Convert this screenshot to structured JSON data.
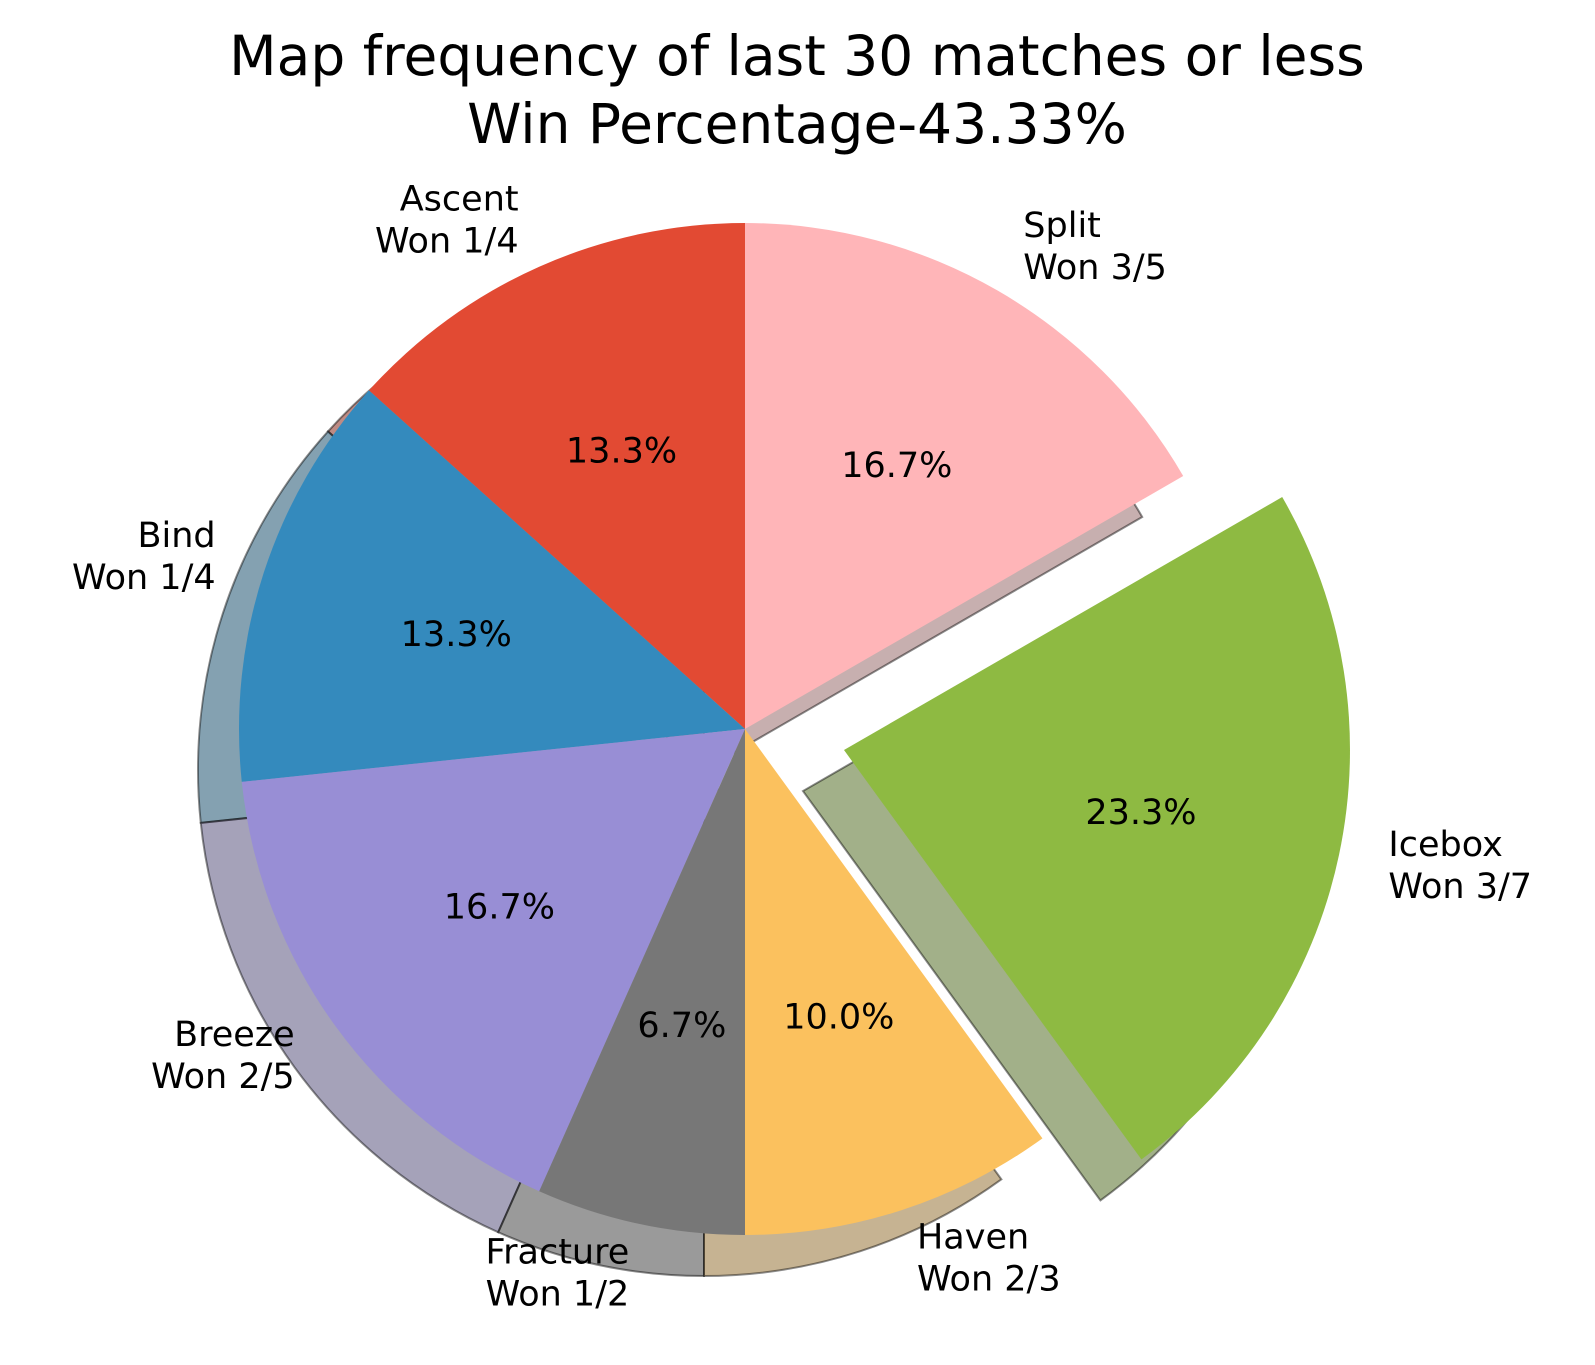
{
  "chart_data": {
    "type": "pie",
    "title_lines": [
      "Map frequency of last 30 matches or less",
      "Win Percentage-43.33%"
    ],
    "start_angle_deg": 90,
    "direction": "counterclockwise",
    "shadow": true,
    "slices": [
      {
        "name": "Ascent",
        "label_lines": [
          "Ascent",
          "Won 1/4"
        ],
        "value": 4,
        "pct_label": "13.3%",
        "color": "#E24A33",
        "explode": 0
      },
      {
        "name": "Bind",
        "label_lines": [
          "Bind",
          "Won 1/4"
        ],
        "value": 4,
        "pct_label": "13.3%",
        "color": "#348ABD",
        "explode": 0
      },
      {
        "name": "Breeze",
        "label_lines": [
          "Breeze",
          "Won 2/5"
        ],
        "value": 5,
        "pct_label": "16.7%",
        "color": "#988ED5",
        "explode": 0
      },
      {
        "name": "Fracture",
        "label_lines": [
          "Fracture",
          "Won 1/2"
        ],
        "value": 2,
        "pct_label": "6.7%",
        "color": "#777777",
        "explode": 0
      },
      {
        "name": "Haven",
        "label_lines": [
          "Haven",
          "Won 2/3"
        ],
        "value": 3,
        "pct_label": "10.0%",
        "color": "#FBC15E",
        "explode": 0
      },
      {
        "name": "Icebox",
        "label_lines": [
          "Icebox",
          "Won 3/7"
        ],
        "value": 7,
        "pct_label": "23.3%",
        "color": "#8EBA42",
        "explode": 0.2
      },
      {
        "name": "Split",
        "label_lines": [
          "Split",
          "Won 3/5"
        ],
        "value": 5,
        "pct_label": "16.7%",
        "color": "#FFB5B8",
        "explode": 0
      }
    ]
  }
}
